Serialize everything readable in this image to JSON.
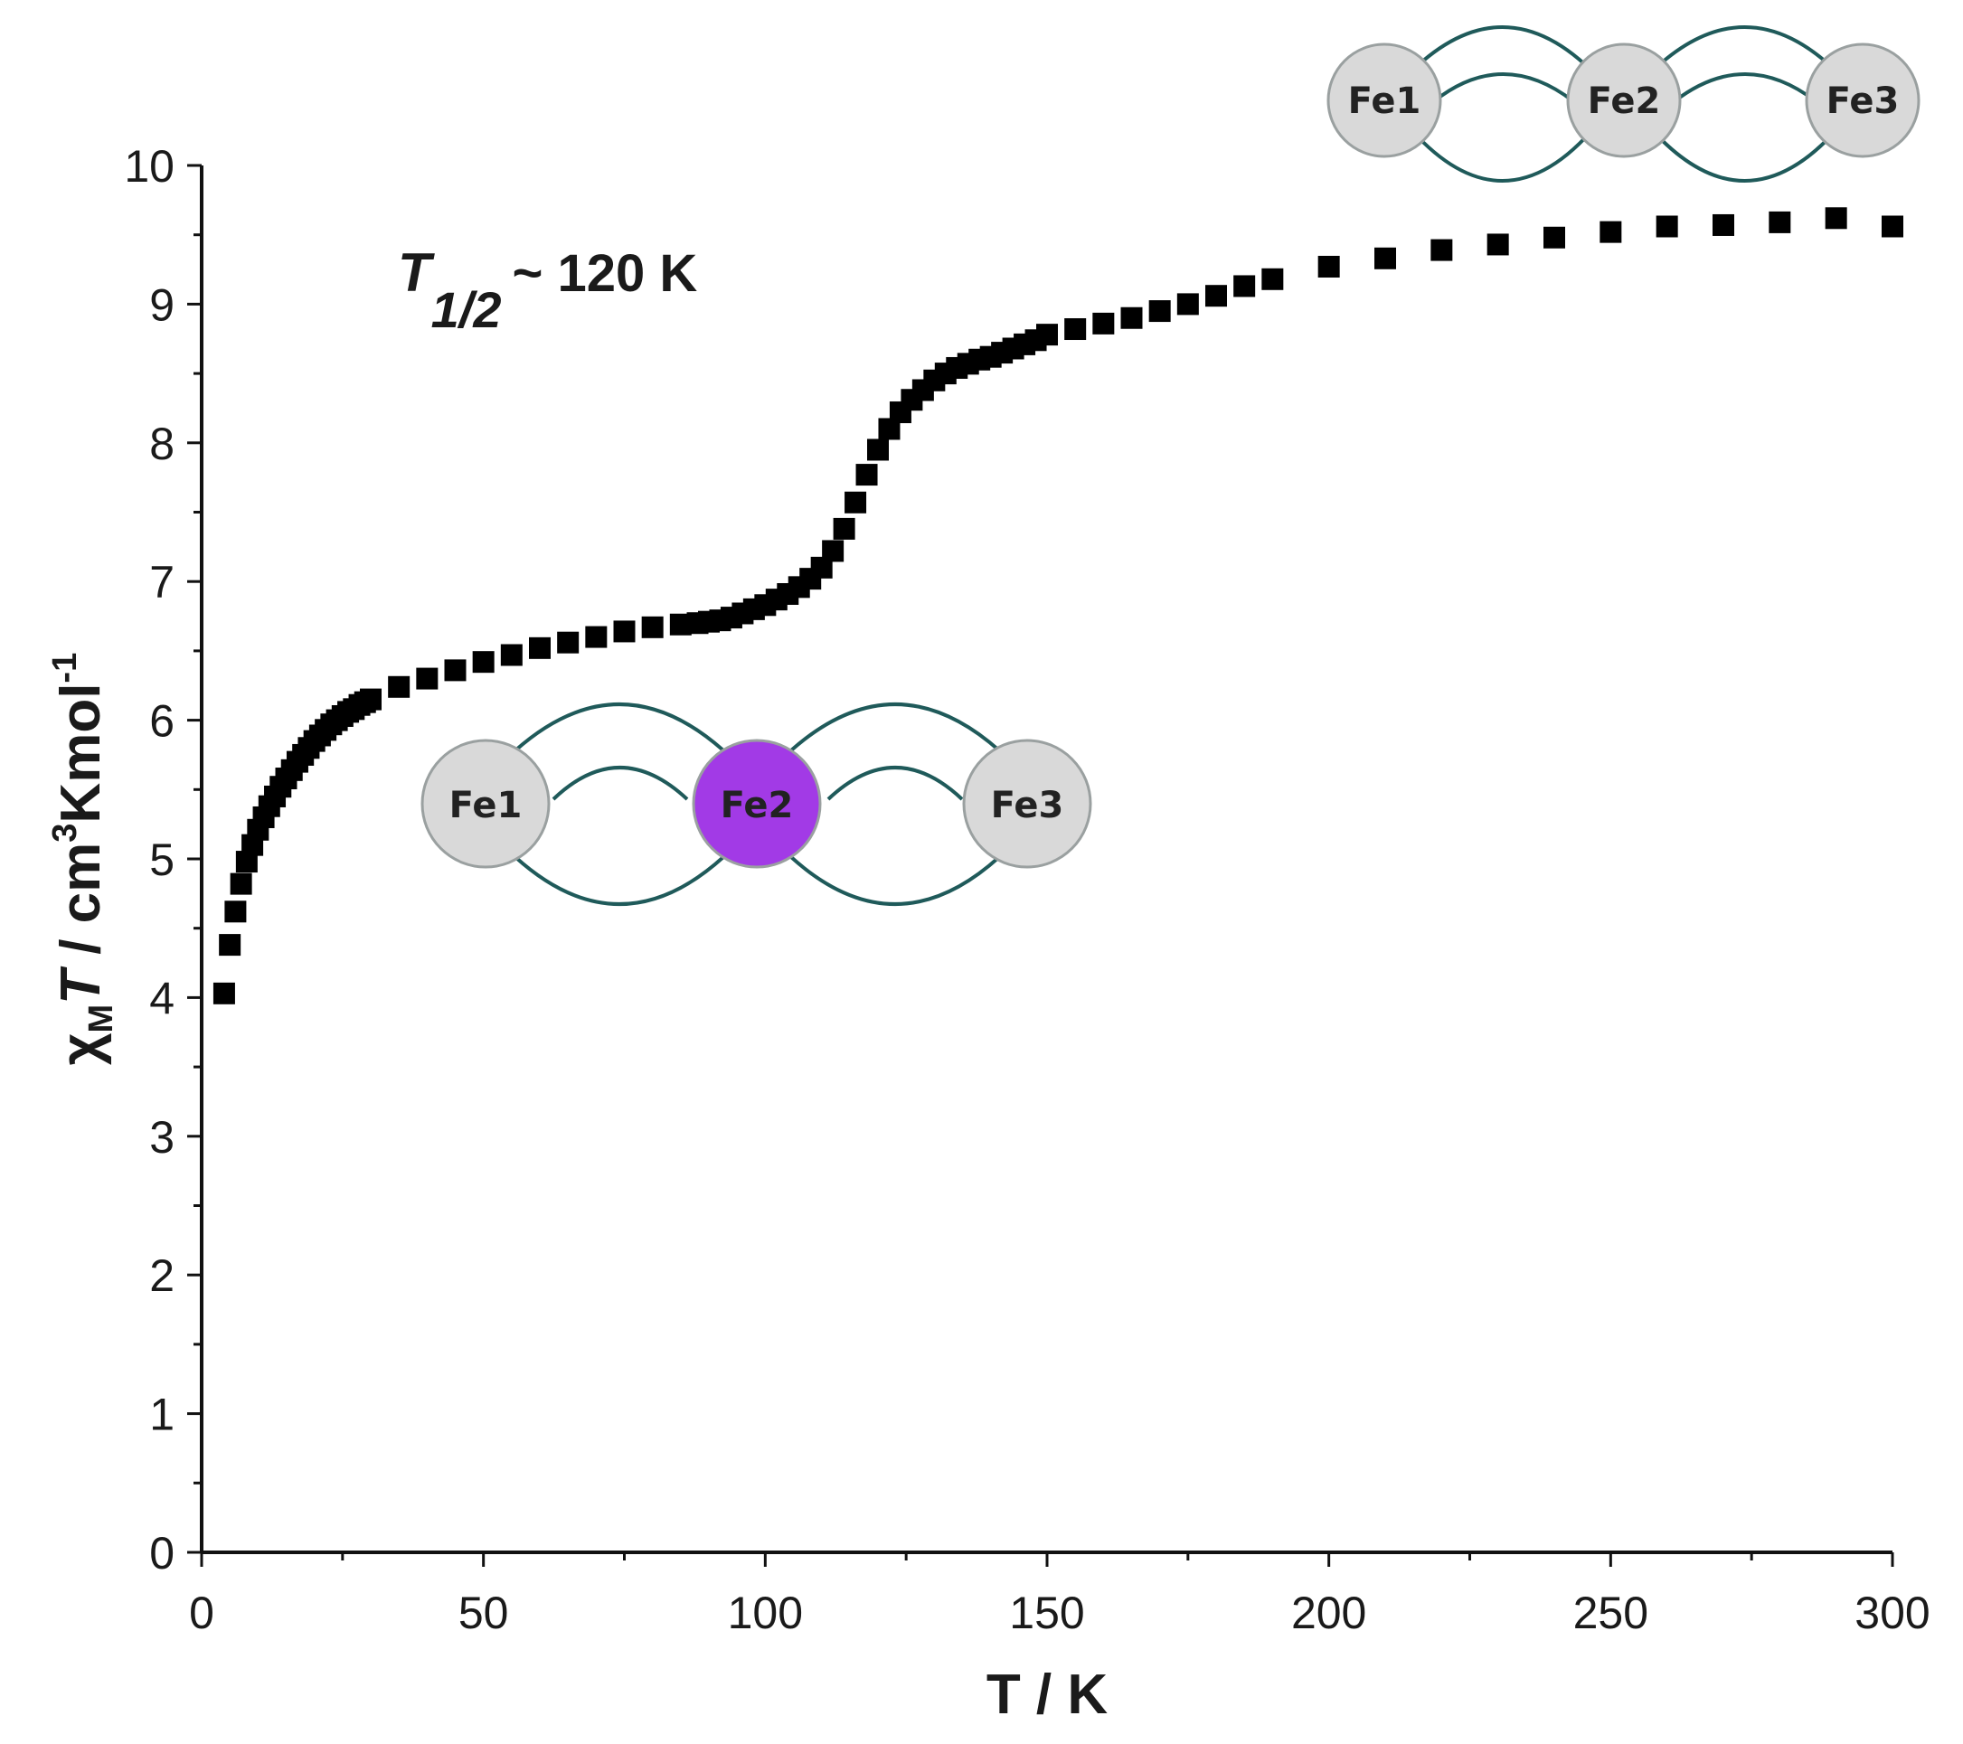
{
  "chart_data": {
    "type": "scatter",
    "xlabel": "T / K",
    "ylabel": {
      "chi": "χ",
      "sub": "M",
      "T": "T",
      "sep": " / cm",
      "exp3": "3",
      "unit": "Kmol",
      "expneg1": "-1"
    },
    "xlim": [
      0,
      300
    ],
    "ylim": [
      0,
      10
    ],
    "xticks": [
      "0",
      "50",
      "100",
      "150",
      "200",
      "250",
      "300"
    ],
    "yticks": [
      "0",
      "1",
      "2",
      "3",
      "4",
      "5",
      "6",
      "7",
      "8",
      "9",
      "10"
    ],
    "grid": false,
    "annotation": {
      "symbol": "T",
      "subscript": "1/2",
      "text": "~ 120 K"
    },
    "marker_color": "#000000",
    "series": [
      {
        "x": [
          4,
          5,
          6,
          7,
          8,
          9,
          10,
          11,
          12,
          13,
          14,
          15,
          16,
          17,
          18,
          19,
          20,
          21,
          22,
          23,
          24,
          25,
          26,
          27,
          28,
          29,
          30,
          35,
          40,
          45,
          50,
          55,
          60,
          65,
          70,
          75,
          80,
          85,
          88,
          90,
          92,
          94,
          96,
          98,
          100,
          102,
          104,
          106,
          108,
          110,
          112,
          114,
          116,
          118,
          120,
          122,
          124,
          126,
          128,
          130,
          132,
          134,
          136,
          138,
          140,
          142,
          144,
          146,
          148,
          150,
          155,
          160,
          165,
          170,
          175,
          180,
          185,
          190,
          200,
          210,
          220,
          230,
          240,
          250,
          260,
          270,
          280,
          290,
          300
        ],
        "y": [
          4.03,
          4.38,
          4.62,
          4.82,
          4.98,
          5.1,
          5.21,
          5.3,
          5.38,
          5.45,
          5.52,
          5.58,
          5.64,
          5.7,
          5.75,
          5.8,
          5.85,
          5.89,
          5.93,
          5.97,
          6.0,
          6.03,
          6.06,
          6.08,
          6.11,
          6.13,
          6.15,
          6.24,
          6.3,
          6.36,
          6.42,
          6.47,
          6.52,
          6.56,
          6.6,
          6.64,
          6.67,
          6.69,
          6.7,
          6.71,
          6.72,
          6.74,
          6.77,
          6.8,
          6.83,
          6.87,
          6.91,
          6.96,
          7.02,
          7.1,
          7.22,
          7.38,
          7.57,
          7.77,
          7.95,
          8.1,
          8.22,
          8.31,
          8.38,
          8.45,
          8.5,
          8.54,
          8.57,
          8.6,
          8.62,
          8.65,
          8.68,
          8.71,
          8.74,
          8.78,
          8.82,
          8.86,
          8.9,
          8.95,
          9.0,
          9.06,
          9.13,
          9.18,
          9.27,
          9.33,
          9.39,
          9.43,
          9.48,
          9.52,
          9.56,
          9.57,
          9.59,
          9.62,
          9.56
        ]
      }
    ]
  },
  "schematics": {
    "top": {
      "nodes": [
        "Fe1",
        "Fe2",
        "Fe3"
      ],
      "colors": [
        "#d9d9d9",
        "#d9d9d9",
        "#d9d9d9"
      ]
    },
    "middle": {
      "nodes": [
        "Fe1",
        "Fe2",
        "Fe3"
      ],
      "colors": [
        "#d9d9d9",
        "#a23ae6",
        "#d9d9d9"
      ]
    }
  }
}
